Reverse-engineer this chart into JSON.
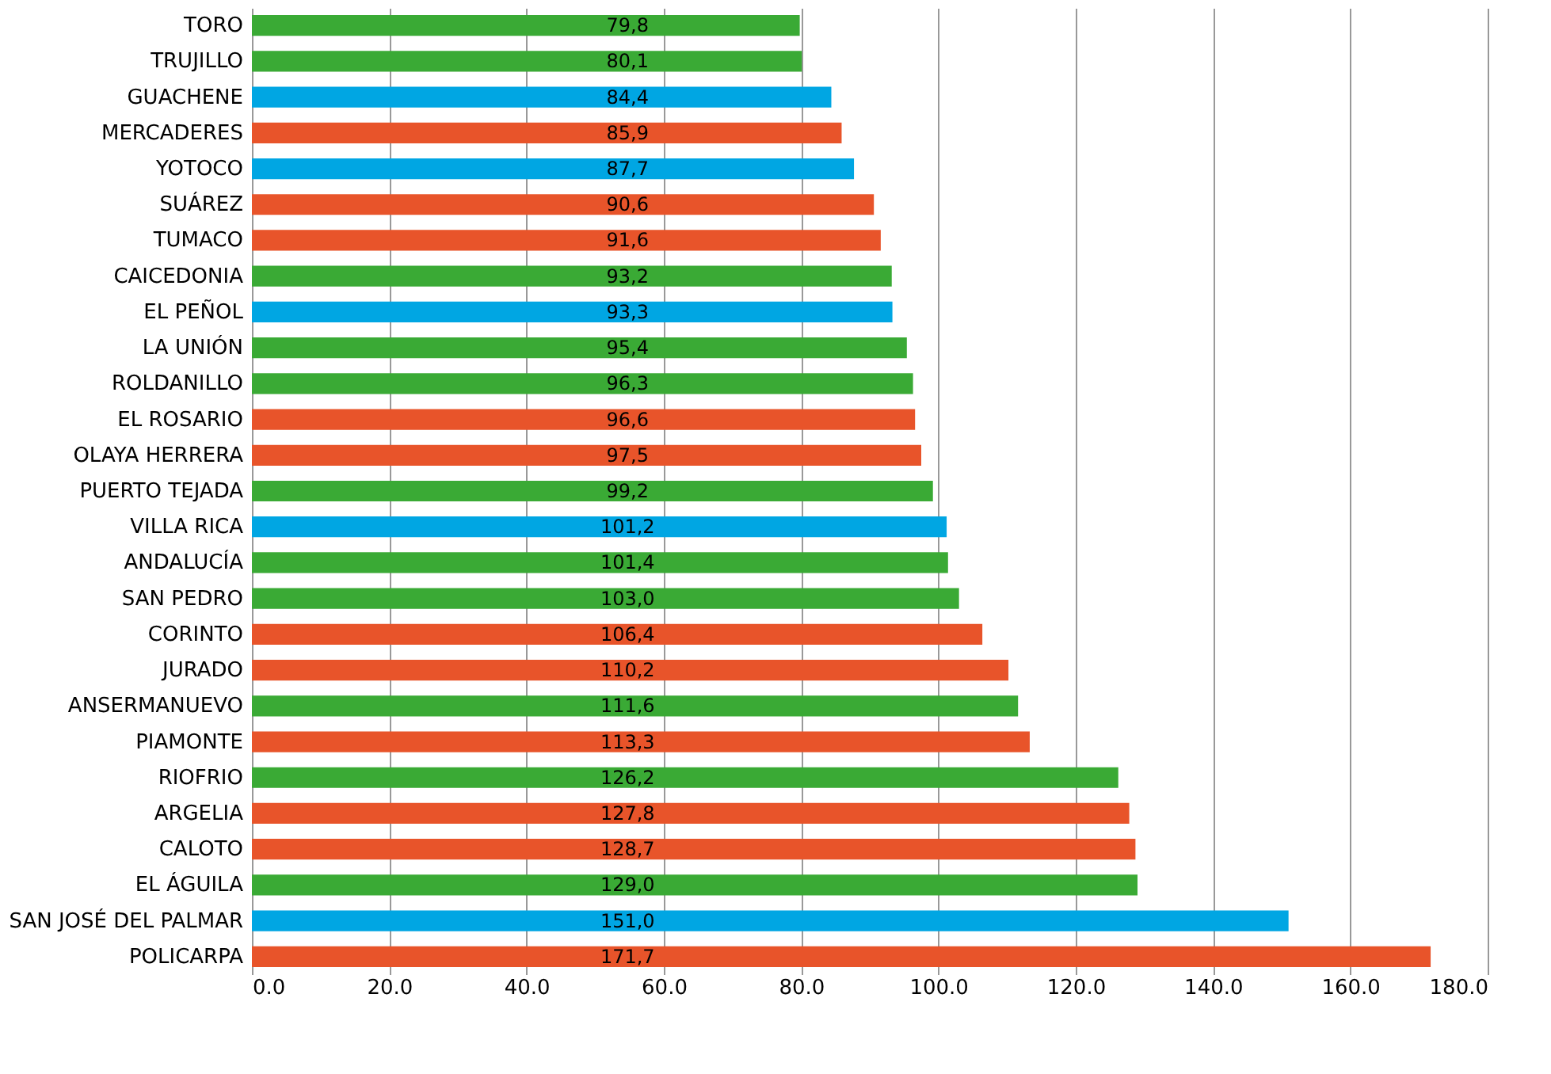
{
  "chart_data": {
    "type": "bar",
    "orientation": "horizontal",
    "categories": [
      "TORO",
      "TRUJILLO",
      "GUACHENE",
      "MERCADERES",
      "YOTOCO",
      "SUÁREZ",
      "TUMACO",
      "CAICEDONIA",
      "EL PEÑOL",
      "LA UNIÓN",
      "ROLDANILLO",
      "EL ROSARIO",
      "OLAYA HERRERA",
      "PUERTO TEJADA",
      "VILLA RICA",
      "ANDALUCÍA",
      "SAN PEDRO",
      "CORINTO",
      "JURADO",
      "ANSERMANUEVO",
      "PIAMONTE",
      "RIOFRIO",
      "ARGELIA",
      "CALOTO",
      "EL ÁGUILA",
      "SAN JOSÉ DEL PALMAR",
      "POLICARPA"
    ],
    "values": [
      79.8,
      80.1,
      84.4,
      85.9,
      87.7,
      90.6,
      91.6,
      93.2,
      93.3,
      95.4,
      96.3,
      96.6,
      97.5,
      99.2,
      101.2,
      101.4,
      103.0,
      106.4,
      110.2,
      111.6,
      113.3,
      126.2,
      127.8,
      128.7,
      129.0,
      151.0,
      171.7
    ],
    "value_labels": [
      "79,8",
      "80,1",
      "84,4",
      "85,9",
      "87,7",
      "90,6",
      "91,6",
      "93,2",
      "93,3",
      "95,4",
      "96,3",
      "96,6",
      "97,5",
      "99,2",
      "101,2",
      "101,4",
      "103,0",
      "106,4",
      "110,2",
      "111,6",
      "113,3",
      "126,2",
      "127,8",
      "128,7",
      "129,0",
      "151,0",
      "171,7"
    ],
    "colors": [
      "#3aaa35",
      "#3aaa35",
      "#00a6e3",
      "#e8542a",
      "#00a6e3",
      "#e8542a",
      "#e8542a",
      "#3aaa35",
      "#00a6e3",
      "#3aaa35",
      "#3aaa35",
      "#e8542a",
      "#e8542a",
      "#3aaa35",
      "#00a6e3",
      "#3aaa35",
      "#3aaa35",
      "#e8542a",
      "#e8542a",
      "#3aaa35",
      "#e8542a",
      "#3aaa35",
      "#e8542a",
      "#e8542a",
      "#3aaa35",
      "#00a6e3",
      "#e8542a"
    ],
    "xlim": [
      0,
      180
    ],
    "xticks": [
      {
        "value": 0,
        "label": "0.0"
      },
      {
        "value": 20,
        "label": "20.0"
      },
      {
        "value": 40,
        "label": "40.0"
      },
      {
        "value": 60,
        "label": "60.0"
      },
      {
        "value": 80,
        "label": "80.0"
      },
      {
        "value": 100,
        "label": "100.0"
      },
      {
        "value": 120,
        "label": "120.0"
      },
      {
        "value": 140,
        "label": "140.0"
      },
      {
        "value": 160,
        "label": "160.0"
      },
      {
        "value": 180,
        "label": "180.0"
      }
    ],
    "grid": "x"
  }
}
